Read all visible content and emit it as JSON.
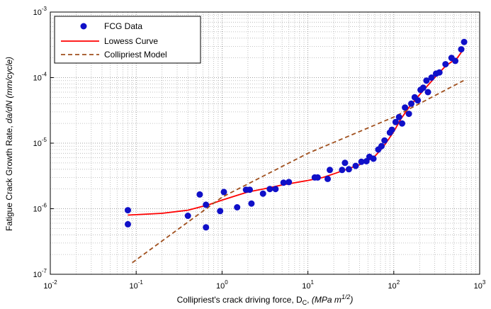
{
  "chart_data": {
    "type": "scatter",
    "xscale": "log",
    "yscale": "log",
    "xlim": [
      0.01,
      1000
    ],
    "ylim": [
      1e-07,
      0.001
    ],
    "grid": true,
    "legend_position": "top-left",
    "xlabel": {
      "prefix": "Collipriest's crack driving force, D",
      "sub": "C",
      "sep": ", ",
      "units_italic": "(MPa m",
      "units_sup": "1/2",
      "units_end": ")"
    },
    "ylabel": {
      "plain": "Fatigue Crack Growth Rate, ",
      "italic": "da/dN (mm/cycle)"
    },
    "x_ticks": [
      {
        "base": "10",
        "exp": "-2",
        "value": 0.01
      },
      {
        "base": "10",
        "exp": "-1",
        "value": 0.1
      },
      {
        "base": "10",
        "exp": "0",
        "value": 1
      },
      {
        "base": "10",
        "exp": "1",
        "value": 10
      },
      {
        "base": "10",
        "exp": "2",
        "value": 100
      },
      {
        "base": "10",
        "exp": "3",
        "value": 1000
      }
    ],
    "y_ticks": [
      {
        "base": "10",
        "exp": "-7",
        "value": 1e-07
      },
      {
        "base": "10",
        "exp": "-6",
        "value": 1e-06
      },
      {
        "base": "10",
        "exp": "-5",
        "value": 1e-05
      },
      {
        "base": "10",
        "exp": "-4",
        "value": 0.0001
      },
      {
        "base": "10",
        "exp": "-3",
        "value": 0.001
      }
    ],
    "series": [
      {
        "name": "FCG Data",
        "kind": "scatter",
        "color": "#1010c8",
        "points": [
          [
            0.08,
            9.5e-07
          ],
          [
            0.08,
            5.8e-07
          ],
          [
            0.4,
            7.8e-07
          ],
          [
            0.55,
            1.65e-06
          ],
          [
            0.65,
            5.2e-07
          ],
          [
            0.65,
            1.15e-06
          ],
          [
            0.95,
            9.2e-07
          ],
          [
            1.05,
            1.8e-06
          ],
          [
            1.5,
            1.05e-06
          ],
          [
            1.9,
            1.95e-06
          ],
          [
            2.1,
            1.95e-06
          ],
          [
            2.2,
            1.2e-06
          ],
          [
            3.0,
            1.7e-06
          ],
          [
            3.6,
            2e-06
          ],
          [
            4.2,
            2e-06
          ],
          [
            5.2,
            2.5e-06
          ],
          [
            6.0,
            2.55e-06
          ],
          [
            12,
            3e-06
          ],
          [
            13,
            3e-06
          ],
          [
            17,
            2.85e-06
          ],
          [
            18,
            3.9e-06
          ],
          [
            25,
            3.9e-06
          ],
          [
            27,
            5e-06
          ],
          [
            30,
            4e-06
          ],
          [
            36,
            4.5e-06
          ],
          [
            42,
            5.2e-06
          ],
          [
            48,
            5.3e-06
          ],
          [
            52,
            6.2e-06
          ],
          [
            58,
            5.8e-06
          ],
          [
            66,
            8e-06
          ],
          [
            72,
            9e-06
          ],
          [
            78,
            1.1e-05
          ],
          [
            90,
            1.45e-05
          ],
          [
            95,
            1.6e-05
          ],
          [
            105,
            2.1e-05
          ],
          [
            115,
            2.5e-05
          ],
          [
            125,
            2e-05
          ],
          [
            135,
            3.5e-05
          ],
          [
            150,
            2.8e-05
          ],
          [
            160,
            4e-05
          ],
          [
            175,
            5e-05
          ],
          [
            190,
            4.5e-05
          ],
          [
            205,
            6.5e-05
          ],
          [
            220,
            7e-05
          ],
          [
            240,
            9e-05
          ],
          [
            250,
            6e-05
          ],
          [
            275,
            0.0001
          ],
          [
            310,
            0.000115
          ],
          [
            340,
            0.00012
          ],
          [
            400,
            0.00016
          ],
          [
            470,
            0.0002
          ],
          [
            520,
            0.00018
          ],
          [
            610,
            0.00027
          ],
          [
            660,
            0.00035
          ]
        ]
      },
      {
        "name": "Lowess Curve",
        "kind": "line",
        "color": "#ff0000",
        "points": [
          [
            0.08,
            8e-07
          ],
          [
            0.2,
            8.5e-07
          ],
          [
            0.4,
            9.5e-07
          ],
          [
            0.7,
            1.15e-06
          ],
          [
            1.0,
            1.35e-06
          ],
          [
            1.5,
            1.6e-06
          ],
          [
            2.0,
            1.8e-06
          ],
          [
            3.0,
            2e-06
          ],
          [
            5.0,
            2.3e-06
          ],
          [
            10,
            2.7e-06
          ],
          [
            15,
            3e-06
          ],
          [
            20,
            3.4e-06
          ],
          [
            30,
            4.1e-06
          ],
          [
            40,
            4.7e-06
          ],
          [
            50,
            5.4e-06
          ],
          [
            60,
            6.3e-06
          ],
          [
            70,
            7.8e-06
          ],
          [
            80,
            9.8e-06
          ],
          [
            100,
            1.5e-05
          ],
          [
            120,
            2.3e-05
          ],
          [
            150,
            3.5e-05
          ],
          [
            200,
            5.5e-05
          ],
          [
            300,
            0.0001
          ],
          [
            400,
            0.00015
          ],
          [
            550,
            0.0002
          ],
          [
            660,
            0.00028
          ]
        ]
      },
      {
        "name": "Collipriest Model",
        "kind": "dashed-line",
        "color": "#a0501e",
        "points": [
          [
            0.09,
            1.5e-07
          ],
          [
            1,
            1.5e-06
          ],
          [
            10,
            7e-06
          ],
          [
            100,
            2.5e-05
          ],
          [
            650,
            9e-05
          ]
        ]
      }
    ]
  }
}
